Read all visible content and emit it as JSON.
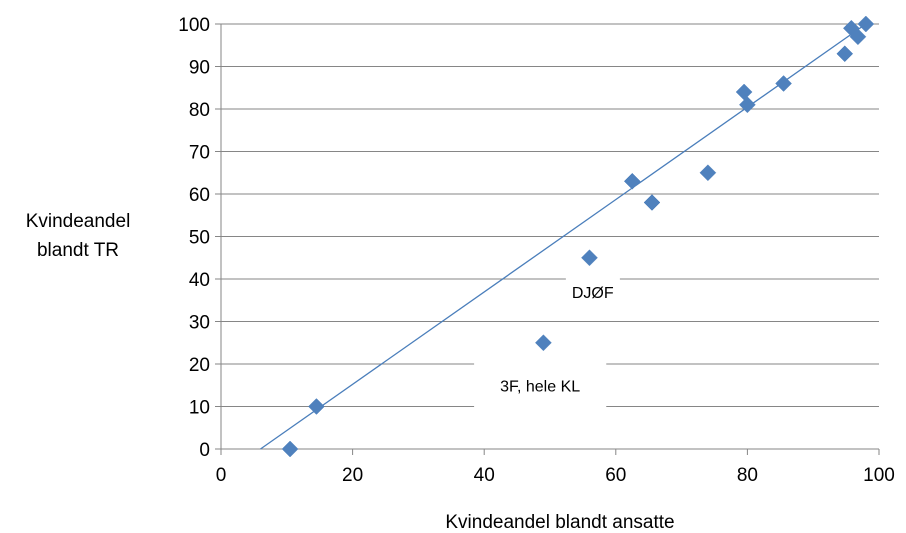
{
  "chart_data": {
    "type": "scatter",
    "xlabel": "Kvindeandel blandt ansatte",
    "ylabel_lines": [
      "Kvindeandel",
      "blandt TR"
    ],
    "xlim": [
      0,
      100
    ],
    "ylim": [
      0,
      100
    ],
    "xticks": [
      0,
      20,
      40,
      60,
      80,
      100
    ],
    "yticks": [
      0,
      10,
      20,
      30,
      40,
      50,
      60,
      70,
      80,
      90,
      100
    ],
    "grid": "horizontal",
    "legend": "none",
    "marker": "diamond",
    "colors": {
      "marker": "#4f81bd",
      "trendline": "#4a7ebb",
      "grid": "#868686"
    },
    "series": [
      {
        "points": [
          {
            "x": 10.5,
            "y": 0
          },
          {
            "x": 14.5,
            "y": 10
          },
          {
            "x": 49,
            "y": 25
          },
          {
            "x": 56,
            "y": 45
          },
          {
            "x": 62.5,
            "y": 63
          },
          {
            "x": 65.5,
            "y": 58
          },
          {
            "x": 74,
            "y": 65
          },
          {
            "x": 79.5,
            "y": 84
          },
          {
            "x": 80,
            "y": 81
          },
          {
            "x": 85.5,
            "y": 86
          },
          {
            "x": 94.8,
            "y": 93
          },
          {
            "x": 95.8,
            "y": 99
          },
          {
            "x": 96.8,
            "y": 97
          },
          {
            "x": 98,
            "y": 100
          }
        ]
      }
    ],
    "trendline": {
      "x0": 6,
      "y0": 0,
      "x1": 98,
      "y1": 100
    },
    "annotations": [
      {
        "text": "DJØF",
        "x": 56.5,
        "y": 36.5
      },
      {
        "text": "3F, hele KL",
        "x": 48.5,
        "y": 14.5
      }
    ]
  }
}
